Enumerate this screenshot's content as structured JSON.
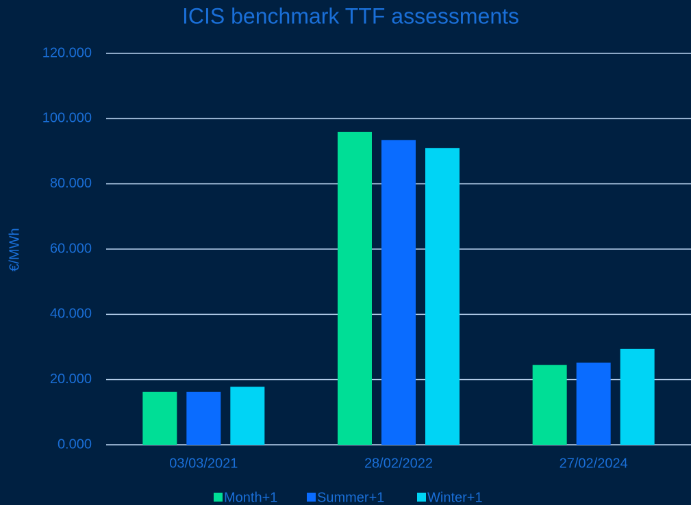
{
  "chart_data": {
    "type": "bar",
    "title": "ICIS benchmark TTF assessments",
    "y_label": "€/MWh",
    "categories": [
      "03/03/2021",
      "28/02/2022",
      "27/02/2024"
    ],
    "series": [
      {
        "name": "Month+1",
        "color": "#00de96",
        "values": [
          16.2,
          95.9,
          24.5
        ]
      },
      {
        "name": "Summer+1",
        "color": "#0a6cff",
        "values": [
          16.2,
          93.4,
          25.2
        ]
      },
      {
        "name": "Winter+1",
        "color": "#00d4f5",
        "values": [
          17.8,
          91.0,
          29.4
        ]
      }
    ],
    "ylim": [
      0,
      120
    ],
    "yticks": [
      {
        "value": 0,
        "label": "0.000"
      },
      {
        "value": 20,
        "label": "20.000"
      },
      {
        "value": 40,
        "label": "40.000"
      },
      {
        "value": 60,
        "label": "60.000"
      },
      {
        "value": 80,
        "label": "80.000"
      },
      {
        "value": 100,
        "label": "100.000"
      },
      {
        "value": 120,
        "label": "120.000"
      }
    ],
    "grid": true,
    "legend": "bottom"
  }
}
